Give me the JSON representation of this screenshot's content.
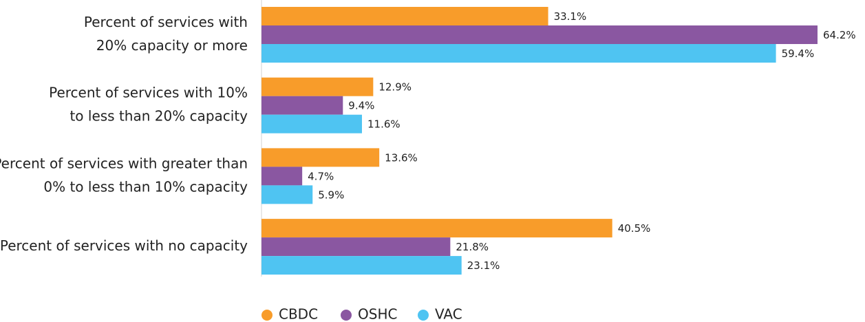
{
  "chart_data": {
    "type": "hbar",
    "categories": [
      [
        "Percent of services with",
        "20% capacity or more"
      ],
      [
        "Percent of services with 10%",
        "to less than 20% capacity"
      ],
      [
        "Percent of services with greater than",
        "0% to less than 10% capacity"
      ],
      [
        "Percent of services with no capacity"
      ]
    ],
    "series": [
      {
        "name": "CBDC",
        "color": "#f89c2a",
        "values": [
          33.1,
          12.9,
          13.6,
          40.5
        ],
        "value_labels": [
          "33.1%",
          "12.9%",
          "13.6%",
          "40.5%"
        ]
      },
      {
        "name": "OSHC",
        "color": "#8a57a1",
        "values": [
          64.2,
          9.4,
          4.7,
          21.8
        ],
        "value_labels": [
          "64.2%",
          "9.4%",
          "4.7%",
          "21.8%"
        ]
      },
      {
        "name": "VAC",
        "color": "#4fc4f2",
        "values": [
          59.4,
          11.6,
          5.9,
          23.1
        ],
        "value_labels": [
          "59.4%",
          "11.6%",
          "5.9%",
          "23.1%"
        ]
      }
    ],
    "legend": "bottom"
  }
}
